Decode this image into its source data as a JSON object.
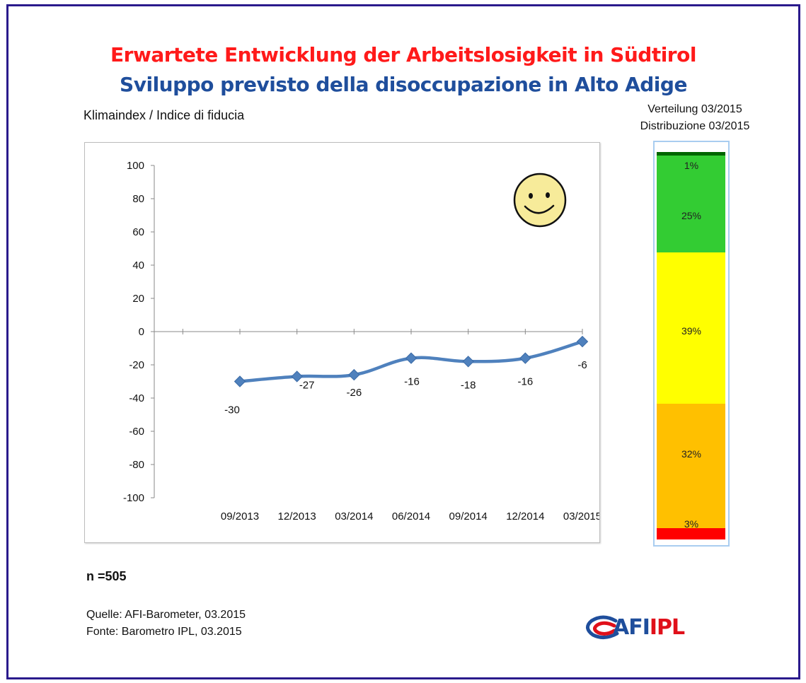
{
  "title_de": "Erwartete Entwicklung der Arbeitslosigkeit in Südtirol",
  "title_it": "Sviluppo previsto della disoccupazione in Alto Adige",
  "chart_label": "Klimaindex / Indice di fiducia",
  "chart_data": [
    {
      "type": "line",
      "x": [
        "09/2013",
        "12/2013",
        "03/2014",
        "06/2014",
        "09/2014",
        "12/2014",
        "03/2015"
      ],
      "values": [
        -30,
        -27,
        -26,
        -16,
        -18,
        -16,
        -6
      ],
      "data_labels": [
        "-30",
        "-27",
        "-26",
        "-16",
        "-18",
        "-16",
        "-6"
      ],
      "ylim": [
        -100,
        100
      ],
      "yticks": [
        "100",
        "80",
        "60",
        "40",
        "20",
        "0",
        "-20",
        "-40",
        "-60",
        "-80",
        "-100"
      ],
      "line_color": "#4f81bd",
      "smooth": true,
      "grid": false,
      "legend": "none"
    },
    {
      "type": "bar",
      "stacked": true,
      "title_line1": "Verteilung 03/2015",
      "title_line2": "Distribuzione 03/2015",
      "segments": [
        {
          "value": 1,
          "label": "1%",
          "color": "#006400"
        },
        {
          "value": 25,
          "label": "25%",
          "color": "#33cc33"
        },
        {
          "value": 39,
          "label": "39%",
          "color": "#ffff00"
        },
        {
          "value": 32,
          "label": "32%",
          "color": "#ffc000"
        },
        {
          "value": 3,
          "label": "3%",
          "color": "#ff0000"
        }
      ]
    }
  ],
  "sample": "n =505",
  "source_de": "Quelle: AFI-Barometer, 03.2015",
  "source_it": "Fonte: Barometro IPL, 03.2015",
  "logo": {
    "afi": "AFI",
    "ipl": "IPL",
    "afi_color": "#1f4e9c",
    "ipl_color": "#e0101a"
  },
  "icons": {
    "mood": "smiley-face-icon",
    "logo": "afi-ipl-logo-icon"
  }
}
